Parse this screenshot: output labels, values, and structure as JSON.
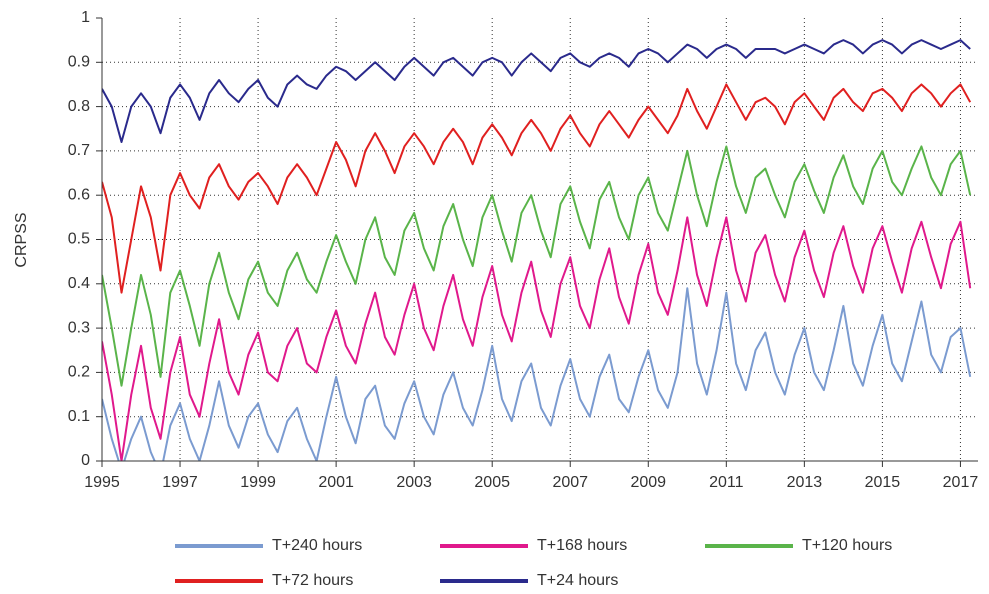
{
  "chart_data": {
    "type": "line",
    "y_label": "CRPSS",
    "x": [
      1995,
      1995.25,
      1995.5,
      1995.75,
      1996,
      1996.25,
      1996.5,
      1996.75,
      1997,
      1997.25,
      1997.5,
      1997.75,
      1998,
      1998.25,
      1998.5,
      1998.75,
      1999,
      1999.25,
      1999.5,
      1999.75,
      2000,
      2000.25,
      2000.5,
      2000.75,
      2001,
      2001.25,
      2001.5,
      2001.75,
      2002,
      2002.25,
      2002.5,
      2002.75,
      2003,
      2003.25,
      2003.5,
      2003.75,
      2004,
      2004.25,
      2004.5,
      2004.75,
      2005,
      2005.25,
      2005.5,
      2005.75,
      2006,
      2006.25,
      2006.5,
      2006.75,
      2007,
      2007.25,
      2007.5,
      2007.75,
      2008,
      2008.25,
      2008.5,
      2008.75,
      2009,
      2009.25,
      2009.5,
      2009.75,
      2010,
      2010.25,
      2010.5,
      2010.75,
      2011,
      2011.25,
      2011.5,
      2011.75,
      2012,
      2012.25,
      2012.5,
      2012.75,
      2013,
      2013.25,
      2013.5,
      2013.75,
      2014,
      2014.25,
      2014.5,
      2014.75,
      2015,
      2015.25,
      2015.5,
      2015.75,
      2016,
      2016.25,
      2016.5,
      2016.75,
      2017,
      2017.25
    ],
    "series": [
      {
        "name": "T+240 hours",
        "color": "#7b9bd0",
        "values": [
          0.14,
          0.05,
          -0.02,
          0.05,
          0.1,
          0.02,
          -0.03,
          0.08,
          0.13,
          0.05,
          0.0,
          0.08,
          0.18,
          0.08,
          0.03,
          0.1,
          0.13,
          0.06,
          0.02,
          0.09,
          0.12,
          0.05,
          0.0,
          0.1,
          0.19,
          0.1,
          0.04,
          0.14,
          0.17,
          0.08,
          0.05,
          0.13,
          0.18,
          0.1,
          0.06,
          0.15,
          0.2,
          0.12,
          0.08,
          0.16,
          0.26,
          0.14,
          0.09,
          0.18,
          0.22,
          0.12,
          0.08,
          0.17,
          0.23,
          0.14,
          0.1,
          0.19,
          0.24,
          0.14,
          0.11,
          0.19,
          0.25,
          0.16,
          0.12,
          0.2,
          0.39,
          0.22,
          0.15,
          0.25,
          0.38,
          0.22,
          0.16,
          0.25,
          0.29,
          0.2,
          0.15,
          0.24,
          0.3,
          0.2,
          0.16,
          0.25,
          0.35,
          0.22,
          0.17,
          0.26,
          0.33,
          0.22,
          0.18,
          0.27,
          0.36,
          0.24,
          0.2,
          0.28,
          0.3,
          0.19
        ]
      },
      {
        "name": "T+168 hours",
        "color": "#e0198c",
        "values": [
          0.27,
          0.15,
          0.0,
          0.15,
          0.26,
          0.12,
          0.05,
          0.2,
          0.28,
          0.15,
          0.1,
          0.22,
          0.32,
          0.2,
          0.15,
          0.24,
          0.29,
          0.2,
          0.18,
          0.26,
          0.3,
          0.22,
          0.2,
          0.28,
          0.34,
          0.26,
          0.22,
          0.31,
          0.38,
          0.28,
          0.24,
          0.33,
          0.4,
          0.3,
          0.25,
          0.35,
          0.42,
          0.32,
          0.26,
          0.37,
          0.44,
          0.33,
          0.27,
          0.38,
          0.45,
          0.34,
          0.28,
          0.4,
          0.46,
          0.35,
          0.3,
          0.41,
          0.48,
          0.37,
          0.31,
          0.42,
          0.49,
          0.38,
          0.33,
          0.43,
          0.55,
          0.42,
          0.35,
          0.46,
          0.55,
          0.43,
          0.36,
          0.47,
          0.51,
          0.42,
          0.36,
          0.46,
          0.52,
          0.43,
          0.37,
          0.47,
          0.53,
          0.44,
          0.38,
          0.48,
          0.53,
          0.45,
          0.38,
          0.48,
          0.54,
          0.46,
          0.39,
          0.49,
          0.54,
          0.39
        ]
      },
      {
        "name": "T+120 hours",
        "color": "#5ab44a",
        "values": [
          0.42,
          0.3,
          0.17,
          0.3,
          0.42,
          0.33,
          0.19,
          0.38,
          0.43,
          0.35,
          0.26,
          0.4,
          0.47,
          0.38,
          0.32,
          0.41,
          0.45,
          0.38,
          0.35,
          0.43,
          0.47,
          0.41,
          0.38,
          0.45,
          0.51,
          0.45,
          0.4,
          0.5,
          0.55,
          0.46,
          0.42,
          0.52,
          0.56,
          0.48,
          0.43,
          0.53,
          0.58,
          0.5,
          0.44,
          0.55,
          0.6,
          0.52,
          0.45,
          0.56,
          0.6,
          0.52,
          0.46,
          0.58,
          0.62,
          0.54,
          0.48,
          0.59,
          0.63,
          0.55,
          0.5,
          0.6,
          0.64,
          0.56,
          0.52,
          0.61,
          0.7,
          0.6,
          0.53,
          0.63,
          0.71,
          0.62,
          0.56,
          0.64,
          0.66,
          0.6,
          0.55,
          0.63,
          0.67,
          0.61,
          0.56,
          0.64,
          0.69,
          0.62,
          0.58,
          0.66,
          0.7,
          0.63,
          0.6,
          0.66,
          0.71,
          0.64,
          0.6,
          0.67,
          0.7,
          0.6
        ]
      },
      {
        "name": "T+72 hours",
        "color": "#e02020",
        "values": [
          0.63,
          0.55,
          0.38,
          0.5,
          0.62,
          0.55,
          0.43,
          0.6,
          0.65,
          0.6,
          0.57,
          0.64,
          0.67,
          0.62,
          0.59,
          0.63,
          0.65,
          0.62,
          0.58,
          0.64,
          0.67,
          0.64,
          0.6,
          0.66,
          0.72,
          0.68,
          0.62,
          0.7,
          0.74,
          0.7,
          0.65,
          0.71,
          0.74,
          0.71,
          0.67,
          0.72,
          0.75,
          0.72,
          0.67,
          0.73,
          0.76,
          0.73,
          0.69,
          0.74,
          0.77,
          0.74,
          0.7,
          0.75,
          0.78,
          0.74,
          0.71,
          0.76,
          0.79,
          0.76,
          0.73,
          0.77,
          0.8,
          0.77,
          0.74,
          0.78,
          0.84,
          0.79,
          0.75,
          0.8,
          0.85,
          0.81,
          0.77,
          0.81,
          0.82,
          0.8,
          0.76,
          0.81,
          0.83,
          0.8,
          0.77,
          0.82,
          0.84,
          0.81,
          0.79,
          0.83,
          0.84,
          0.82,
          0.79,
          0.83,
          0.85,
          0.83,
          0.8,
          0.83,
          0.85,
          0.81
        ]
      },
      {
        "name": "T+24 hours",
        "color": "#2a2a8c",
        "values": [
          0.84,
          0.8,
          0.72,
          0.8,
          0.83,
          0.8,
          0.74,
          0.82,
          0.85,
          0.82,
          0.77,
          0.83,
          0.86,
          0.83,
          0.81,
          0.84,
          0.86,
          0.82,
          0.8,
          0.85,
          0.87,
          0.85,
          0.84,
          0.87,
          0.89,
          0.88,
          0.86,
          0.88,
          0.9,
          0.88,
          0.86,
          0.89,
          0.91,
          0.89,
          0.87,
          0.9,
          0.91,
          0.89,
          0.87,
          0.9,
          0.91,
          0.9,
          0.87,
          0.9,
          0.92,
          0.9,
          0.88,
          0.91,
          0.92,
          0.9,
          0.89,
          0.91,
          0.92,
          0.91,
          0.89,
          0.92,
          0.93,
          0.92,
          0.9,
          0.92,
          0.94,
          0.93,
          0.91,
          0.93,
          0.94,
          0.93,
          0.91,
          0.93,
          0.93,
          0.93,
          0.92,
          0.93,
          0.94,
          0.93,
          0.92,
          0.94,
          0.95,
          0.94,
          0.92,
          0.94,
          0.95,
          0.94,
          0.92,
          0.94,
          0.95,
          0.94,
          0.93,
          0.94,
          0.95,
          0.93
        ]
      }
    ],
    "xlim": [
      1995,
      2017.45
    ],
    "xticks": [
      1995,
      1997,
      1999,
      2001,
      2003,
      2005,
      2007,
      2009,
      2011,
      2013,
      2015,
      2017
    ],
    "ylim": [
      0,
      1
    ],
    "yticks": [
      0,
      0.1,
      0.2,
      0.3,
      0.4,
      0.5,
      0.6,
      0.7,
      0.8,
      0.9,
      1
    ],
    "grid": true,
    "legend": "bottom"
  }
}
